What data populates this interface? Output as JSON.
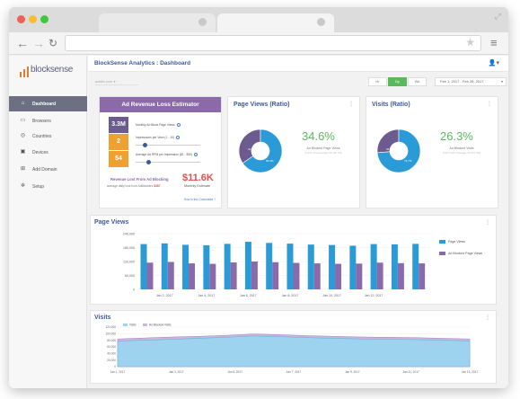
{
  "browser": {
    "url": ""
  },
  "sidebar": {
    "logo": "blocksense",
    "items": [
      {
        "label": "Dashboard",
        "icon": "home-icon"
      },
      {
        "label": "Browsers",
        "icon": "browser-icon"
      },
      {
        "label": "Countries",
        "icon": "globe-icon"
      },
      {
        "label": "Devices",
        "icon": "device-icon"
      },
      {
        "label": "Add Domain",
        "icon": "add-domain-icon"
      },
      {
        "label": "Setup",
        "icon": "gear-icon"
      }
    ]
  },
  "header": {
    "title": "BlockSense Analytics : Dashboard"
  },
  "filters": {
    "site": "adsite.com",
    "segments": [
      "Hr",
      "Dy",
      "Wk"
    ],
    "active_segment": "Dy",
    "date_range": "Feb 1, 2017 - Feb 28, 2017"
  },
  "estimator": {
    "title": "Ad Revenue Loss Estimator",
    "rows": [
      {
        "value": "3.3M",
        "label": "Monthly Ad Block Page Views",
        "color": "#6b5b8e"
      },
      {
        "value": "2",
        "label": "Impressions per View (1 - 10)",
        "color": "#f0a030"
      },
      {
        "value": "$4",
        "label": "Average Ad RPM per Impression ($1 - $30)",
        "color": "#f0a030"
      }
    ],
    "revenue_label": "Revenue Lost From Ad Blocking",
    "revenue_sub": "average daily loss from AdBlockers",
    "daily_loss": "$387",
    "monthly_value": "$11.6K",
    "monthly_label": "Monthly Estimate",
    "link": "How is this Calculated ?"
  },
  "page_views_ratio": {
    "title": "Page Views (Ratio)",
    "percent": "34.6%",
    "label": "Ad Blocked Page Views",
    "sub": "(4,071,470 Average 53,116 VS)",
    "slice_labels": [
      "34.6%",
      "65.4%"
    ],
    "fraction": 0.346,
    "colors": [
      "#6b5b8e",
      "#2b9bd8"
    ]
  },
  "visits_ratio": {
    "title": "Visits (Ratio)",
    "percent": "26.3%",
    "label": "Ad Blocked Visits",
    "sub": "(2,877,097 Average 33,097 VS)",
    "slice_labels": [
      "26.3%",
      "73.7%"
    ],
    "fraction": 0.263,
    "colors": [
      "#6b5b8e",
      "#2b9bd8"
    ]
  },
  "page_views_chart": {
    "title": "Page Views",
    "legend": [
      "Page Views",
      "Ad Blocked Page Views"
    ],
    "colors": [
      "#2b9bd8",
      "#8a6aa8"
    ],
    "chart_data": {
      "type": "bar",
      "ylim": [
        0,
        240000
      ],
      "yticks": [
        "240,000",
        "180,000",
        "120,000",
        "60,000",
        "0"
      ],
      "xticks": [
        "Jan 2, 2017",
        "Jan 4, 2017",
        "Jan 6, 2017",
        "Jan 8, 2017",
        "Jan 10, 2017",
        "Jan 12, 2017"
      ],
      "series": [
        {
          "name": "Page Views",
          "values": [
            195000,
            198000,
            192000,
            190000,
            196000,
            205000,
            200000,
            197000,
            193000,
            191000,
            188000,
            195000,
            194000,
            196000
          ]
        },
        {
          "name": "Ad Blocked Page Views",
          "values": [
            115000,
            118000,
            112000,
            110000,
            116000,
            120000,
            117000,
            114000,
            112000,
            110000,
            111000,
            115000,
            113000,
            112000
          ]
        }
      ]
    }
  },
  "visits_chart": {
    "title": "Visits",
    "legend": [
      "Visits",
      "Ad Blocked Visits"
    ],
    "colors": [
      "#9ed3f0",
      "#c8b8dc"
    ],
    "chart_data": {
      "type": "area",
      "ylim": [
        0,
        120000
      ],
      "yticks": [
        "120,000",
        "100,000",
        "80,000",
        "60,000",
        "40,000",
        "20,000",
        "0"
      ],
      "xticks": [
        "Jan 1, 2017",
        "Jan 3, 2017",
        "Jan 5, 2017",
        "Jan 7, 2017",
        "Jan 9, 2017",
        "Jan 11, 2017",
        "Jan 13, 2017"
      ],
      "series": [
        {
          "name": "Visits",
          "values": [
            78000,
            80000,
            83000,
            86000,
            89000,
            93000,
            91000,
            88000,
            86000,
            84000,
            83000,
            82000,
            80000,
            78000
          ]
        },
        {
          "name": "Ad Blocked Visits",
          "values": [
            84000,
            87000,
            90000,
            92000,
            95000,
            99000,
            97000,
            94000,
            92000,
            90000,
            89000,
            88000,
            86000,
            84000
          ]
        }
      ]
    }
  }
}
